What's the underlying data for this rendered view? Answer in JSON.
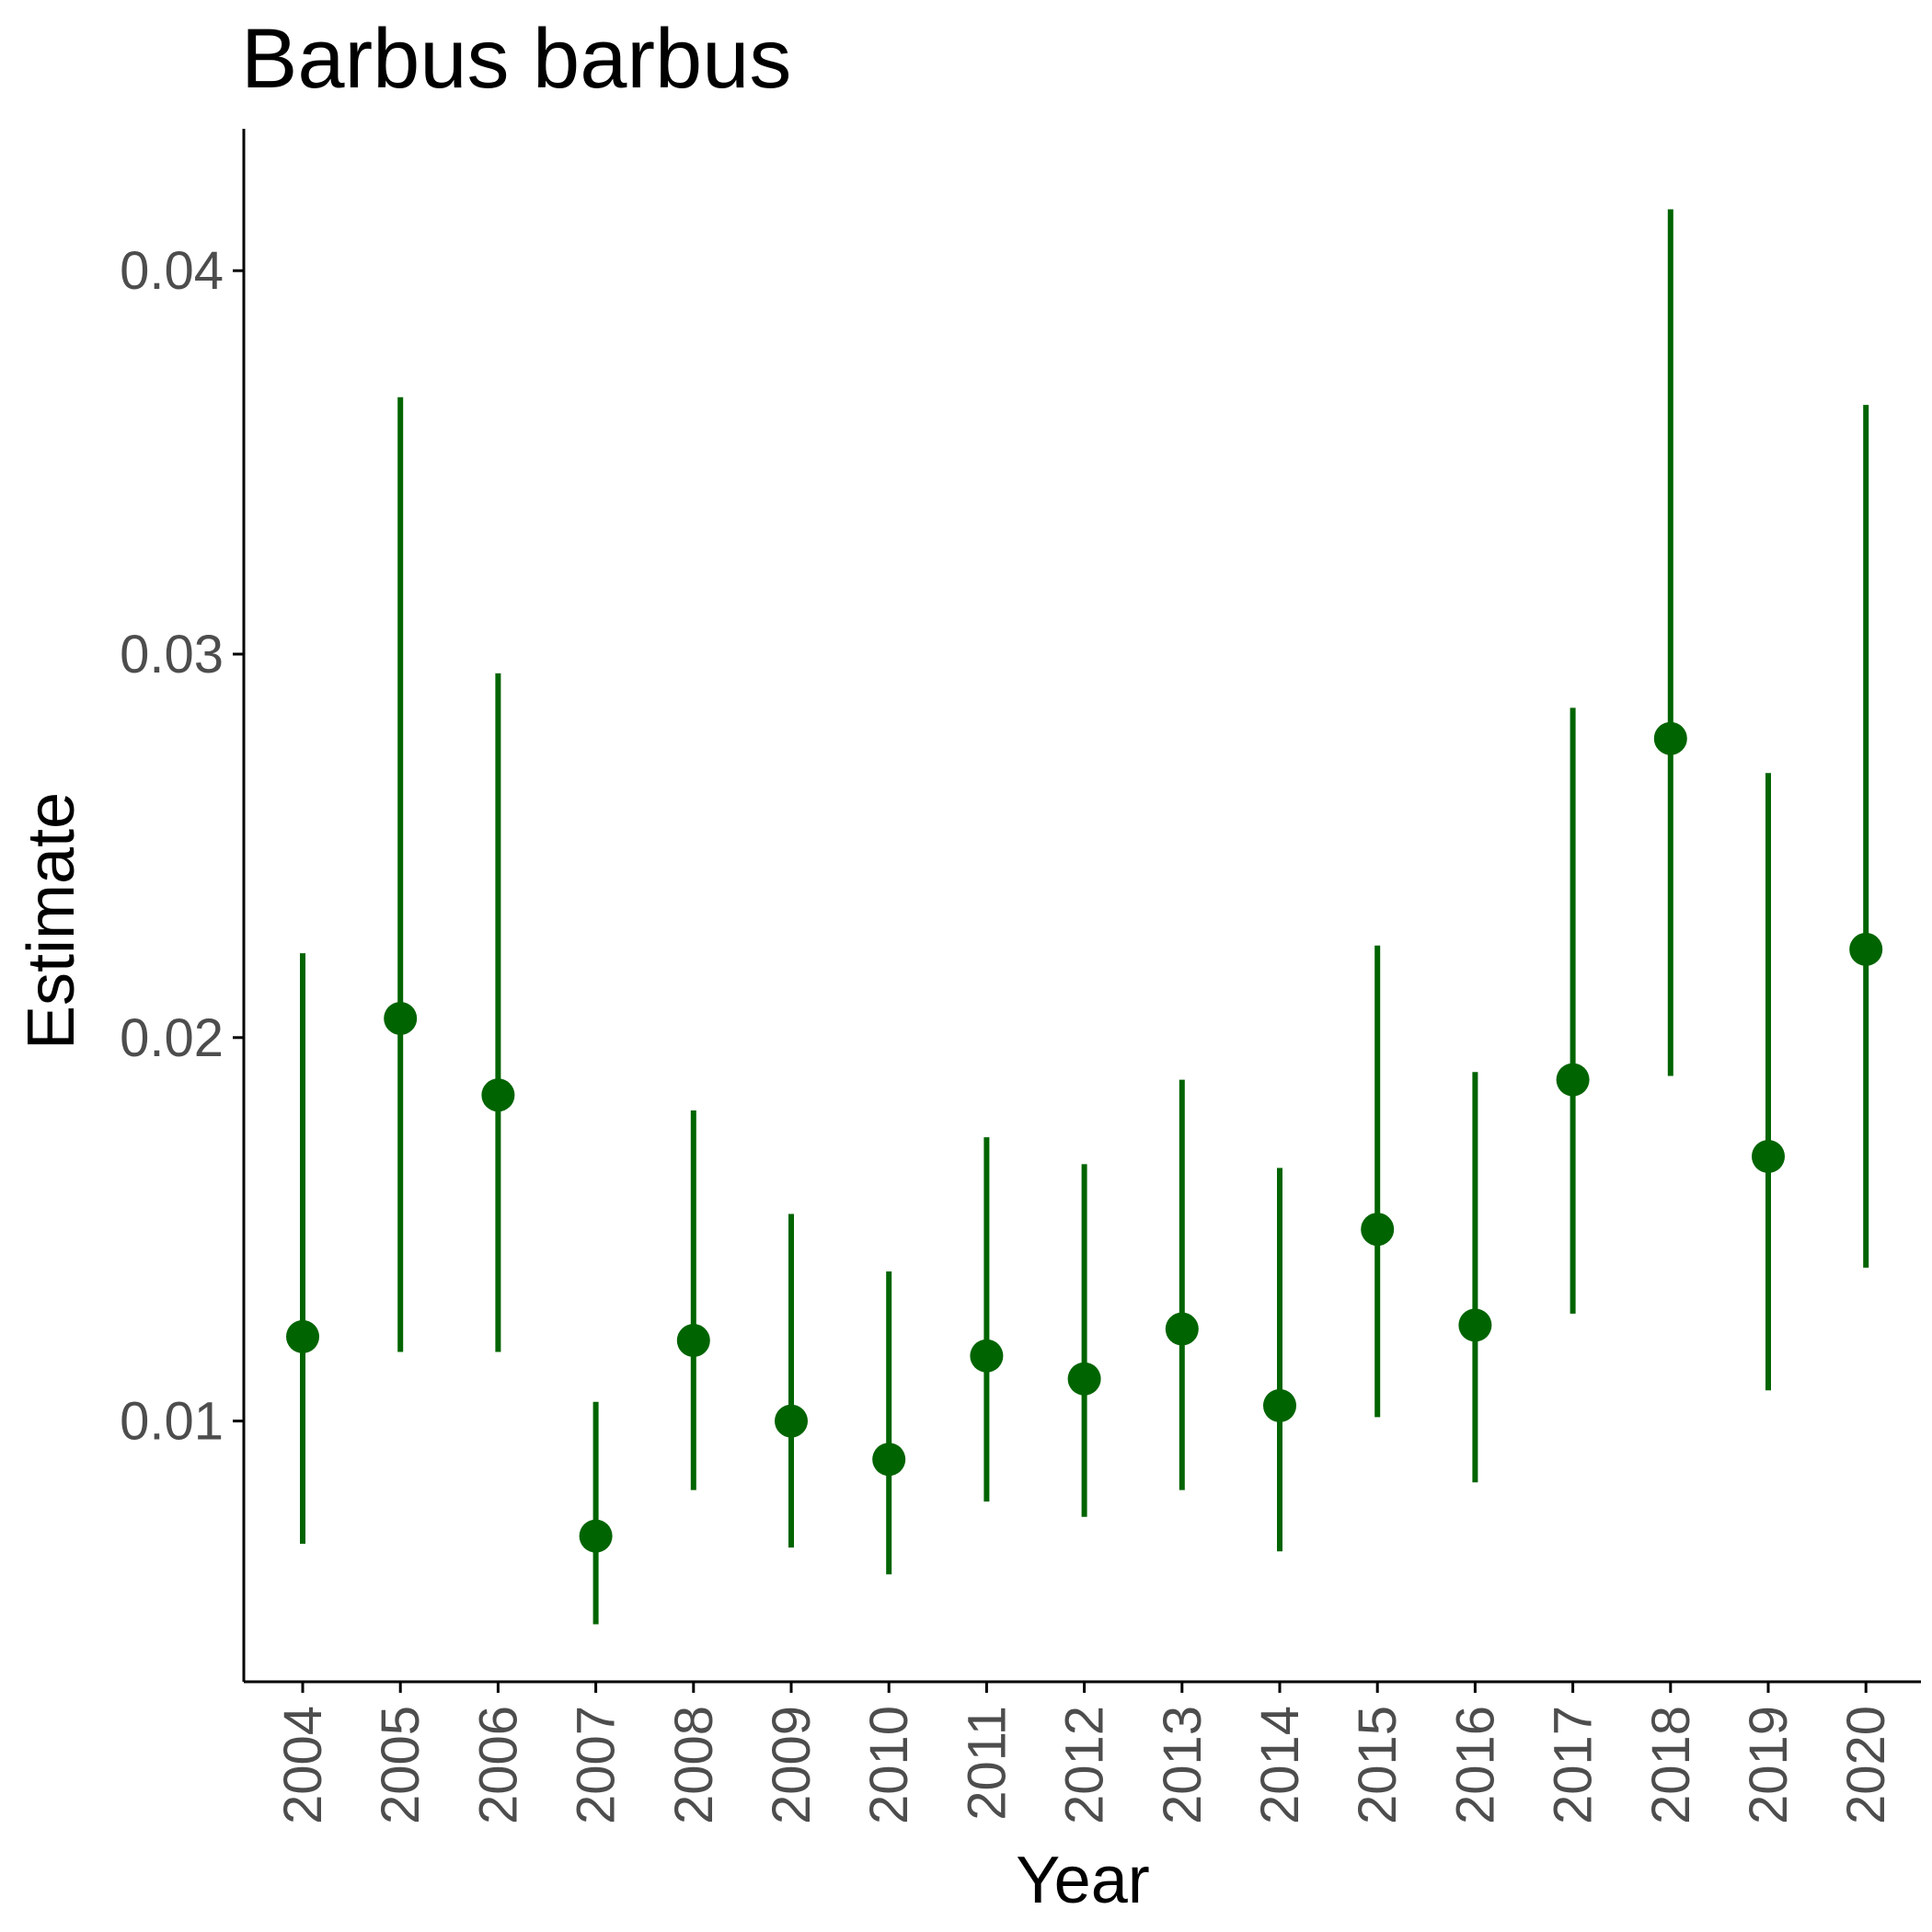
{
  "chart_data": {
    "type": "scatter",
    "title": "Barbus barbus",
    "xlabel": "Year",
    "ylabel": "Estimate",
    "categories": [
      "2004",
      "2005",
      "2006",
      "2007",
      "2008",
      "2009",
      "2010",
      "2011",
      "2012",
      "2013",
      "2014",
      "2015",
      "2016",
      "2017",
      "2018",
      "2019",
      "2020"
    ],
    "series": [
      {
        "values": [
          0.0122,
          0.0205,
          0.0185,
          0.007,
          0.0121,
          0.01,
          0.009,
          0.0117,
          0.0111,
          0.0124,
          0.0104,
          0.015,
          0.0125,
          0.0189,
          0.0278,
          0.0169,
          0.0223
        ],
        "lower": [
          0.0068,
          0.0118,
          0.0118,
          0.0047,
          0.0082,
          0.0067,
          0.006,
          0.0079,
          0.0075,
          0.0082,
          0.0066,
          0.0101,
          0.0084,
          0.0128,
          0.019,
          0.0108,
          0.014
        ],
        "upper": [
          0.0222,
          0.0367,
          0.0295,
          0.0105,
          0.0181,
          0.0154,
          0.0139,
          0.0174,
          0.0167,
          0.0189,
          0.0166,
          0.0224,
          0.0191,
          0.0286,
          0.0416,
          0.0269,
          0.0365
        ]
      }
    ],
    "yticks": [
      "0.01",
      "0.02",
      "0.03",
      "0.04"
    ],
    "ylim": [
      0.0032,
      0.0437
    ],
    "grid": false,
    "legend": "none",
    "colors": {
      "marker": "#006400",
      "axis": "#000000",
      "tick_text": "#4d4d4d"
    }
  }
}
